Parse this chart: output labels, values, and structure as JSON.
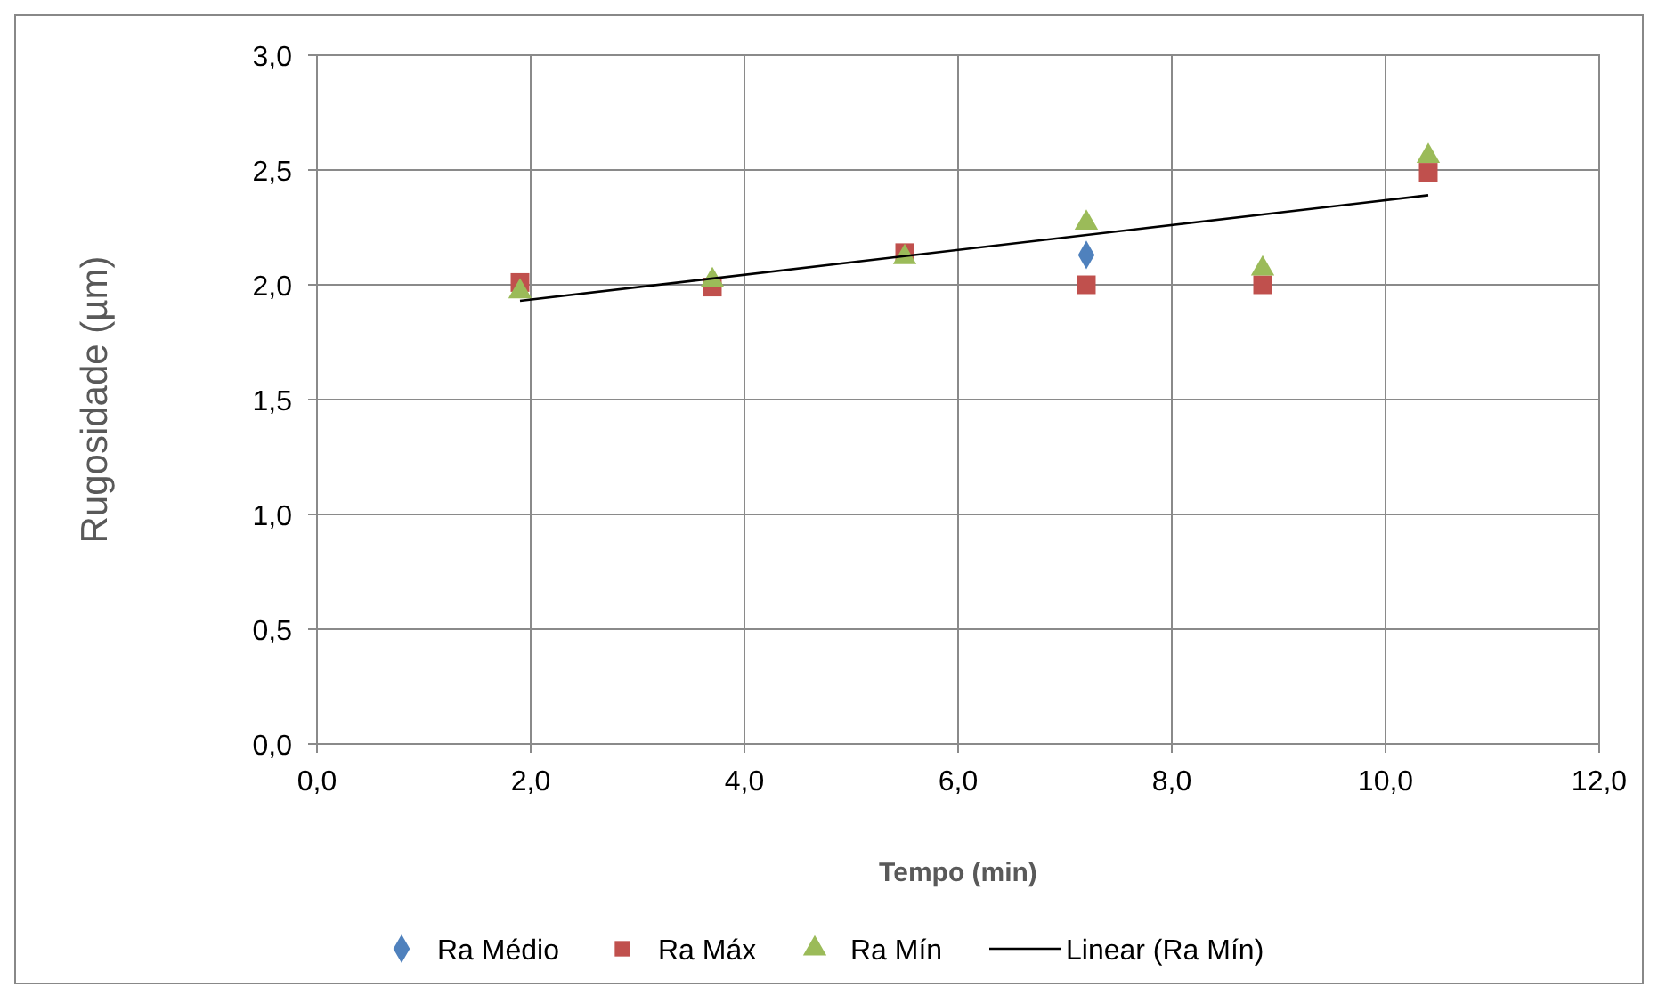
{
  "chart_data": {
    "type": "scatter",
    "xlabel": "Tempo (min)",
    "ylabel": "Rugosidade (µm)",
    "xlim": [
      0,
      12
    ],
    "xticks": [
      {
        "value": 0,
        "label": "0,0"
      },
      {
        "value": 2,
        "label": "2,0"
      },
      {
        "value": 4,
        "label": "4,0"
      },
      {
        "value": 6,
        "label": "6,0"
      },
      {
        "value": 8,
        "label": "8,0"
      },
      {
        "value": 10,
        "label": "10,0"
      },
      {
        "value": 12,
        "label": "12,0"
      }
    ],
    "ylim": [
      0,
      3
    ],
    "yticks": [
      {
        "value": 0,
        "label": "0,0"
      },
      {
        "value": 0.5,
        "label": "0,5"
      },
      {
        "value": 1,
        "label": "1,0"
      },
      {
        "value": 1.5,
        "label": "1,5"
      },
      {
        "value": 2,
        "label": "2,0"
      },
      {
        "value": 2.5,
        "label": "2,5"
      },
      {
        "value": 3,
        "label": "3,0"
      }
    ],
    "x": [
      1.9,
      3.7,
      5.5,
      7.2,
      8.85,
      10.4
    ],
    "grid": true,
    "legend": "bottom",
    "series": [
      {
        "name": "Ra Médio",
        "color": "#4f81bd",
        "marker": "diamond",
        "values": [
          null,
          null,
          null,
          2.13,
          null,
          null
        ]
      },
      {
        "name": "Ra Máx",
        "color": "#c0504d",
        "marker": "square",
        "values": [
          2.01,
          1.99,
          2.14,
          2.0,
          2.0,
          2.49
        ]
      },
      {
        "name": "Ra Mín",
        "color": "#9bbb59",
        "marker": "triangle",
        "values": [
          1.97,
          2.02,
          2.12,
          2.27,
          2.07,
          2.56
        ]
      },
      {
        "name": "Linear (Ra Mín)",
        "type": "line",
        "color": "#000000",
        "marker": "none",
        "x": [
          1.9,
          10.4
        ],
        "values": [
          1.93,
          2.39
        ]
      }
    ]
  }
}
